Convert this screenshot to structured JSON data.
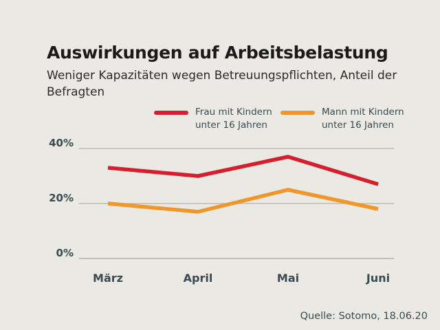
{
  "chart_data": {
    "type": "line",
    "title": "Auswirkungen auf Arbeitsbelastung",
    "subtitle": "Weniger Kapazitäten wegen Betreuungspflichten, Anteil der Befragten",
    "categories": [
      "März",
      "April",
      "Mai",
      "Juni"
    ],
    "series": [
      {
        "name": "Frau mit Kindern unter 16 Jahren",
        "name_line1": "Frau mit Kindern",
        "name_line2": "unter 16 Jahren",
        "values": [
          33,
          30,
          37,
          27
        ],
        "color": "#d51e2e"
      },
      {
        "name": "Mann mit Kindern unter 16 Jahren",
        "name_line1": "Mann mit Kindern",
        "name_line2": "unter 16 Jahren",
        "values": [
          20,
          17,
          25,
          18
        ],
        "color": "#f0972b"
      }
    ],
    "yticks": [
      0,
      20,
      40
    ],
    "ytick_labels": [
      "0%",
      "20%",
      "40%"
    ],
    "ylim": [
      0,
      40
    ],
    "xlabel": "",
    "ylabel": "",
    "grid": true,
    "legend_position": "top",
    "source": "Quelle: Sotomo, 18.06.20"
  }
}
